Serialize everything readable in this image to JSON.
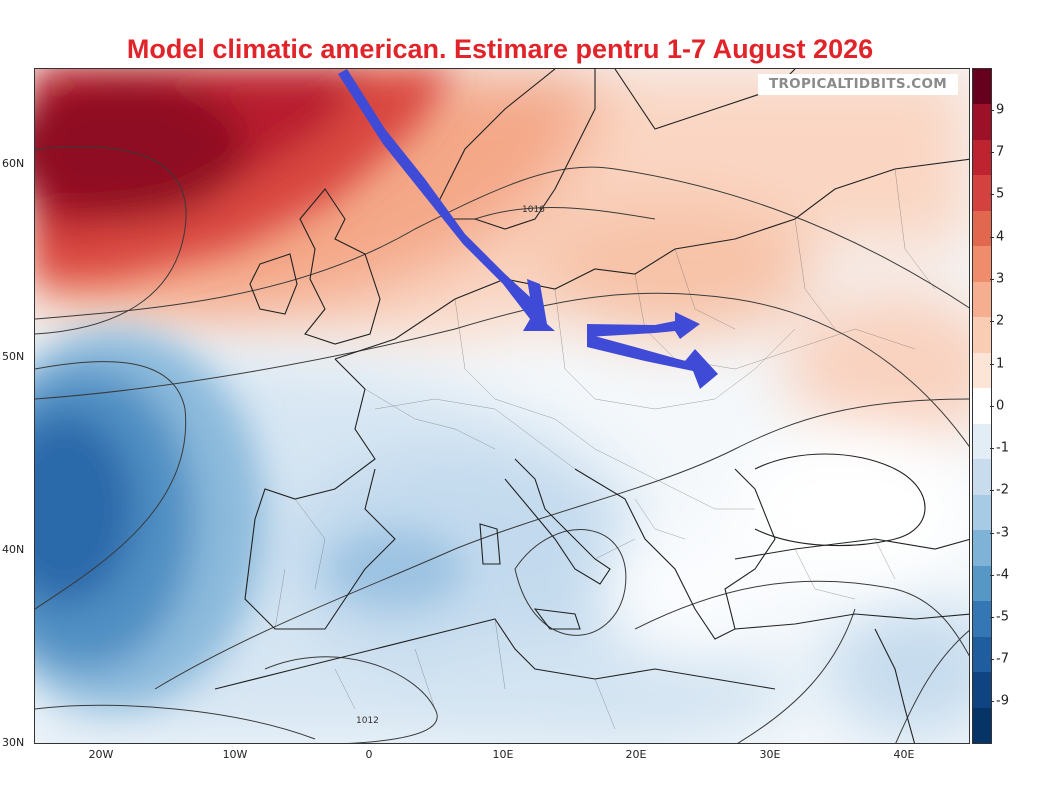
{
  "title": "Model climatic american. Estimare pentru 1-7 August 2026",
  "watermark": "TROPICALTIDBITS.COM",
  "lat_labels": [
    "60N",
    "50N",
    "40N",
    "30N"
  ],
  "lon_labels": [
    "20W",
    "10W",
    "0",
    "10E",
    "20E",
    "30E",
    "40E"
  ],
  "colorbar_labels": [
    "9",
    "7",
    "5",
    "4",
    "3",
    "2",
    "1",
    "0",
    "-1",
    "-2",
    "-3",
    "-4",
    "-5",
    "-7",
    "-9"
  ],
  "contour_labels": [
    "1016",
    "1012"
  ],
  "colorbar_colors": [
    "#67001f",
    "#9c1127",
    "#bd2430",
    "#d3423e",
    "#e2674f",
    "#ee8c6c",
    "#f5ae8f",
    "#f9ccb4",
    "#fce4d6",
    "#ffffff",
    "#e2edf6",
    "#c8dcee",
    "#a7cbe4",
    "#7eb2d6",
    "#5797c6",
    "#3577b4",
    "#1f5d9e",
    "#0f4382",
    "#073466"
  ],
  "arrow_color": "#3f4bd6",
  "land_outline_color": "#222222"
}
